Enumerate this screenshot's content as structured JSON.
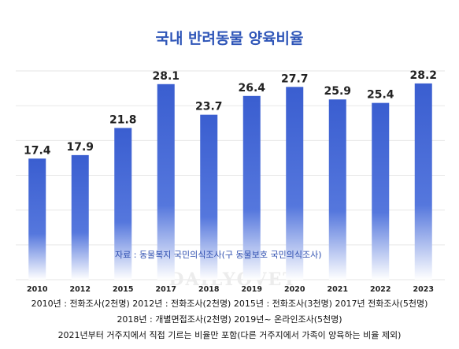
{
  "chart_data": {
    "type": "bar",
    "title": "국내 반려동물 양육비율",
    "categories": [
      "2010",
      "2012",
      "2015",
      "2017",
      "2018",
      "2019",
      "2020",
      "2021",
      "2022",
      "2023"
    ],
    "values": [
      17.4,
      17.9,
      21.8,
      28.1,
      23.7,
      26.4,
      27.7,
      25.9,
      25.4,
      28.2
    ],
    "value_labels": [
      "17.4",
      "17.9",
      "21.8",
      "28.1",
      "23.7",
      "26.4",
      "27.7",
      "25.9",
      "25.4",
      "28.2"
    ],
    "xlabel": "",
    "ylabel": "",
    "ylim": [
      0,
      30
    ],
    "grid": true,
    "bar_color": "#3a5ed0",
    "bar_fade_color": "#ffffff"
  },
  "source_note": "자료 : 동물복지 국민의식조사(구 동물보호 국민의식조사)",
  "watermark": "DAILYOVET",
  "footnotes": [
    "2010년 : 전화조사(2천명)  2012년 : 전화조사(2천명)  2015년 : 전화조사(3천명)  2017년 전화조사(5천명)",
    "2018년 : 개별면접조사(2천명)  2019년~ 온라인조사(5천명)",
    "2021년부터 거주지에서 직접 기르는 비율만 포함(다른 거주지에서 가족이 양육하는 비율 제외)"
  ]
}
